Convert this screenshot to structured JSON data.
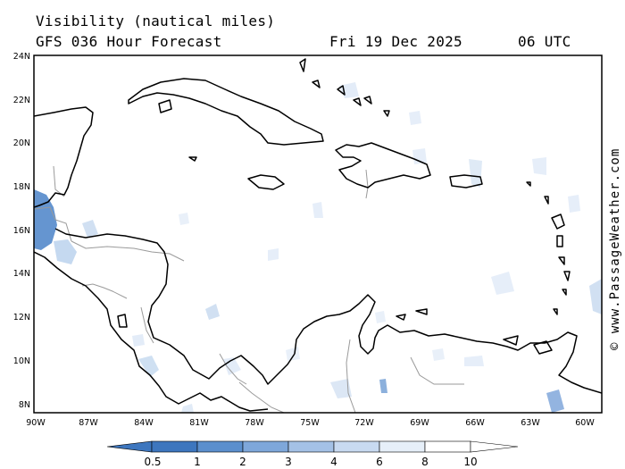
{
  "title": {
    "line1": "Visibility (nautical miles)",
    "line2": "GFS 036 Hour Forecast",
    "date": "Fri 19 Dec 2025",
    "time": "06 UTC"
  },
  "credit": "© www.PassageWeather.com",
  "map": {
    "lon_range": [
      -90,
      -59.5
    ],
    "lat_range": [
      7.5,
      24
    ],
    "lat_ticks": [
      "24N",
      "22N",
      "20N",
      "18N",
      "16N",
      "14N",
      "12N",
      "10N",
      "8N"
    ],
    "lon_ticks": [
      "90W",
      "87W",
      "84W",
      "81W",
      "78W",
      "75W",
      "72W",
      "69W",
      "66W",
      "63W",
      "60W"
    ],
    "colors": {
      "land_outline": "#000000",
      "border": "#9a9a9a",
      "low_visibility": "#3f7cc4",
      "moderate_visibility": "#9ec0e6"
    }
  },
  "colorbar": {
    "labels": [
      "0.5",
      "1",
      "2",
      "3",
      "4",
      "6",
      "8",
      "10"
    ],
    "colors": [
      "#3d76be",
      "#3d76be",
      "#5b8fcd",
      "#7ea7da",
      "#a4c1e6",
      "#c8daf1",
      "#e6eff9",
      "#ffffff",
      "#ffffff"
    ]
  }
}
